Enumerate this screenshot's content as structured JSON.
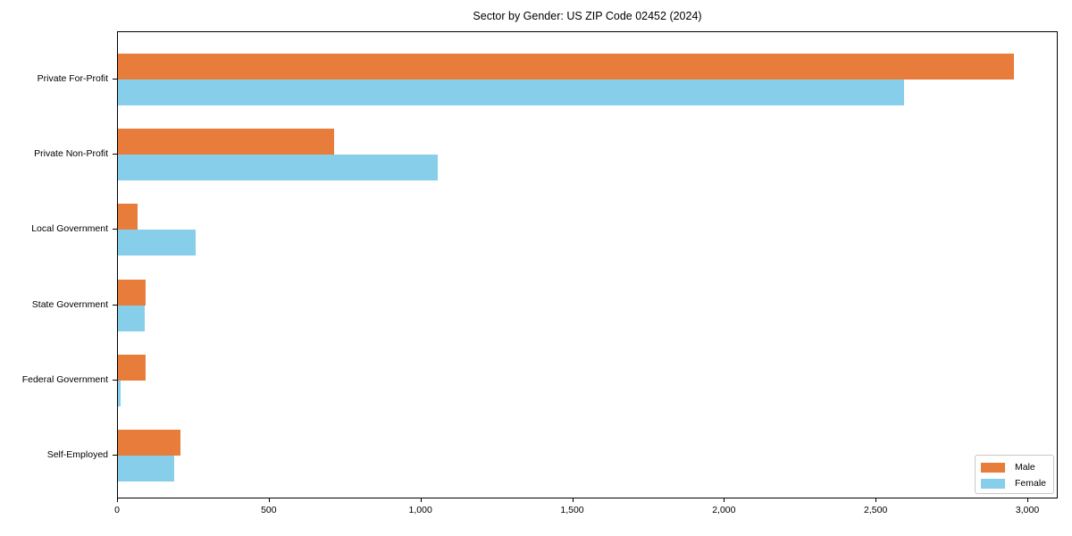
{
  "chart_data": {
    "type": "bar",
    "orientation": "horizontal",
    "title": "Sector by Gender: US ZIP Code 02452 (2024)",
    "categories": [
      "Private For-Profit",
      "Private Non-Profit",
      "Local Government",
      "State Government",
      "Federal Government",
      "Self-Employed"
    ],
    "series": [
      {
        "name": "Male",
        "color": "#E87D3B",
        "values": [
          2957,
          713,
          65,
          92,
          91,
          206
        ]
      },
      {
        "name": "Female",
        "color": "#87CEEB",
        "values": [
          2597,
          1055,
          256,
          88,
          9,
          186
        ]
      }
    ],
    "xlabel": "",
    "ylabel": "",
    "xlim": [
      0,
      3100
    ],
    "xticks": [
      {
        "v": 0,
        "label": "0"
      },
      {
        "v": 500,
        "label": "500"
      },
      {
        "v": 1000,
        "label": "1,000"
      },
      {
        "v": 1500,
        "label": "1,500"
      },
      {
        "v": 2000,
        "label": "2,000"
      },
      {
        "v": 2500,
        "label": "2,500"
      },
      {
        "v": 3000,
        "label": "3,000"
      }
    ],
    "grid": false,
    "legend_position": "lower right",
    "axis_color": "#000000",
    "background_color": "#ffffff"
  }
}
